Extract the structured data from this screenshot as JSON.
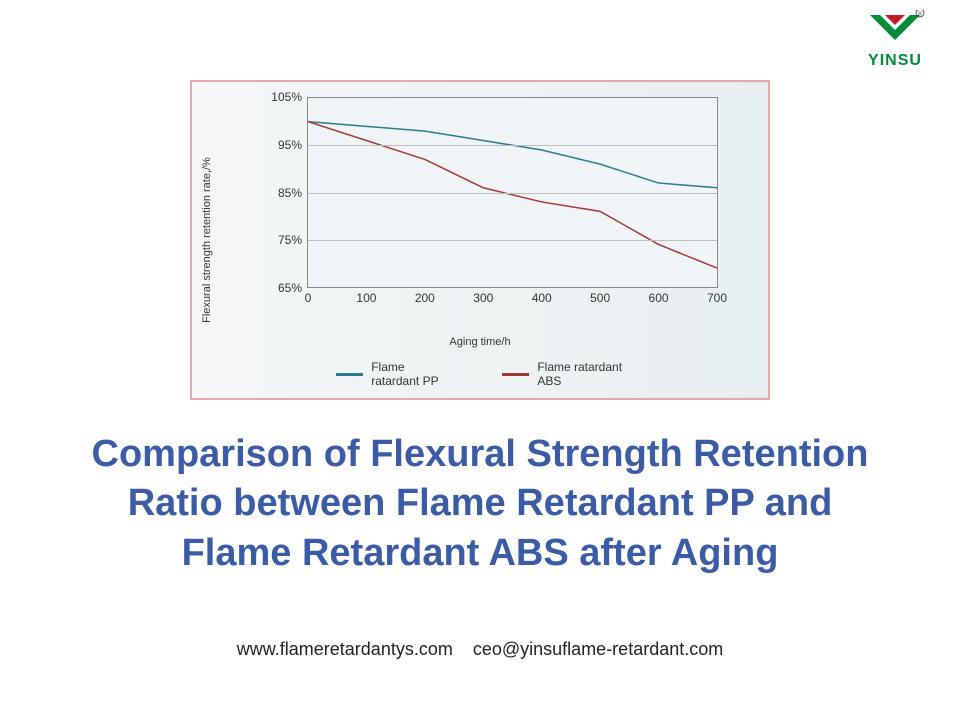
{
  "logo": {
    "brand_text": "YINSU",
    "brand_color": "#008a3a",
    "accent_red": "#c41e24"
  },
  "chart": {
    "type": "line",
    "border_color": "#e8a8a8",
    "background_color": "#f0f4f6",
    "grid_color": "#bbbbbb",
    "yaxis_label": "Flexural strength retention rate,/%",
    "xaxis_label": "Aging time/h",
    "label_fontsize": 11,
    "tick_fontsize": 12,
    "ylim": [
      65,
      105
    ],
    "ytick_labels": [
      "65%",
      "75%",
      "85%",
      "95%",
      "105%"
    ],
    "ytick_values": [
      65,
      75,
      85,
      95,
      105
    ],
    "xlim": [
      0,
      700
    ],
    "xtick_labels": [
      "0",
      "100",
      "200",
      "300",
      "400",
      "500",
      "600",
      "700"
    ],
    "xtick_values": [
      0,
      100,
      200,
      300,
      400,
      500,
      600,
      700
    ],
    "series": [
      {
        "name": "Flame ratardant PP",
        "color": "#2d7a8c",
        "line_width": 3,
        "x": [
          0,
          100,
          200,
          300,
          400,
          500,
          600,
          700
        ],
        "y": [
          100,
          99,
          98,
          96,
          94,
          91,
          87,
          86
        ]
      },
      {
        "name": "Flame ratardant ABS",
        "color": "#a03838",
        "line_width": 3,
        "x": [
          0,
          100,
          200,
          300,
          400,
          500,
          600,
          700
        ],
        "y": [
          100,
          96,
          92,
          86,
          83,
          81,
          74,
          69
        ]
      }
    ]
  },
  "title": {
    "line1": "Comparison of Flexural Strength Retention",
    "line2": "Ratio between Flame Retardant PP and",
    "line3": "Flame Retardant ABS after Aging",
    "color": "#3b5ba5",
    "fontsize": 38
  },
  "contact": {
    "website": "www.flameretardantys.com",
    "email": "ceo@yinsuflame-retardant.com"
  }
}
